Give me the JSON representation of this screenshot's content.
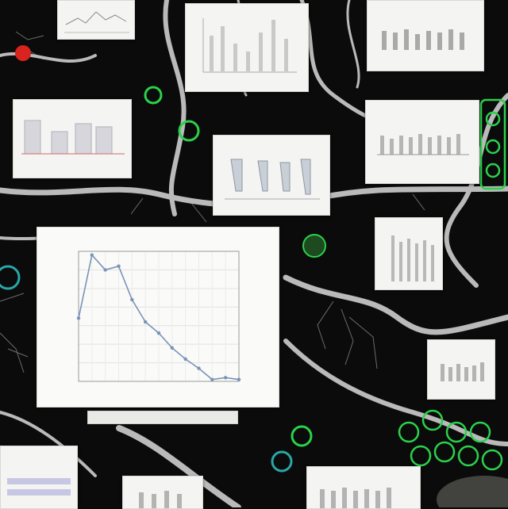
{
  "scene": {
    "description_hidden": "",
    "colors": {
      "background": "#0b0b0b",
      "roots": "#d9d9d9",
      "card": "#f4f4f2",
      "line_series": "#7a93b8",
      "accent_green": "#2bd14a",
      "accent_red": "#d8231e"
    }
  },
  "main_chart": {
    "title": "",
    "chart_data": {
      "type": "line",
      "x": [
        1,
        2,
        3,
        4,
        5,
        6,
        7,
        8,
        9,
        10,
        11,
        12,
        13
      ],
      "values": [
        6.8,
        13.6,
        12.0,
        12.4,
        8.8,
        6.4,
        5.2,
        3.6,
        2.4,
        1.4,
        0.2,
        0.4,
        0.2
      ],
      "ylim": [
        0,
        14
      ],
      "grid": true
    }
  }
}
